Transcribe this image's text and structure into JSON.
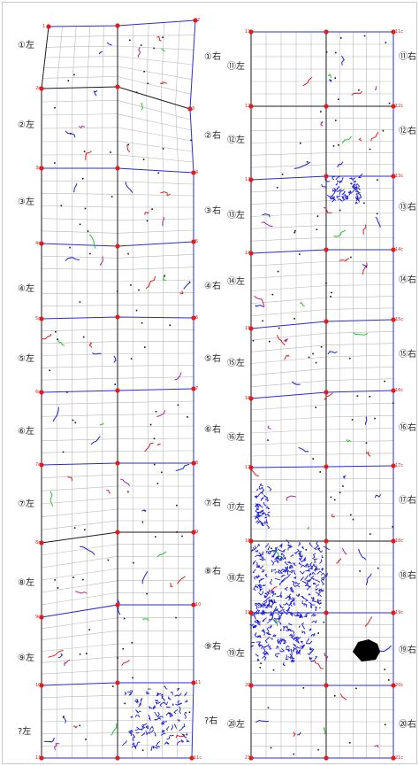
{
  "colors": {
    "outline_blue": "#2a2ad8",
    "outline_black": "#1a1a1a",
    "grid": "#b8b8b8",
    "control_point": "#e21c1c",
    "crack_red": "#e11f1f",
    "crack_green": "#22c228",
    "crack_blue": "#1c1cd8",
    "crack_magenta": "#b02890",
    "dot": "#111111"
  },
  "columns": {
    "left": {
      "side_labels": [
        "①左",
        "②左",
        "③左",
        "④左",
        "⑤左",
        "⑥左",
        "⑦左",
        "⑧左",
        "⑨左",
        "?左"
      ],
      "mid_labels": [
        "①右",
        "②右",
        "③右",
        "④右",
        "⑤右",
        "⑥右",
        "⑦右",
        "⑧右",
        "⑨右",
        "?右"
      ],
      "point_tags": [
        "1",
        "2",
        "2c",
        "3",
        "3c",
        "4",
        "4c",
        "5",
        "5c",
        "6",
        "6c",
        "7",
        "7c",
        "8",
        "8c",
        "9",
        "9c",
        "10",
        "10c",
        "11",
        "11b",
        "11c",
        "1c"
      ]
    },
    "right": {
      "side_labels": [
        "⑪左",
        "⑫左",
        "⑬左",
        "⑭左",
        "⑮左",
        "⑯左",
        "⑰左",
        "⑱左",
        "⑲左",
        "⑳左"
      ],
      "end_labels": [
        "⑪右",
        "⑫右",
        "⑬右",
        "⑭右",
        "⑮右",
        "⑯右",
        "⑰右",
        "⑱右",
        "⑲右",
        "⑳右"
      ],
      "point_tags": [
        "11",
        "11c",
        "12",
        "12c",
        "13",
        "13c",
        "14",
        "14c",
        "15",
        "15c",
        "16",
        "16c",
        "17",
        "17c",
        "18",
        "18c",
        "19",
        "19c",
        "20",
        "20c",
        "21",
        "21c",
        "21b"
      ]
    }
  }
}
